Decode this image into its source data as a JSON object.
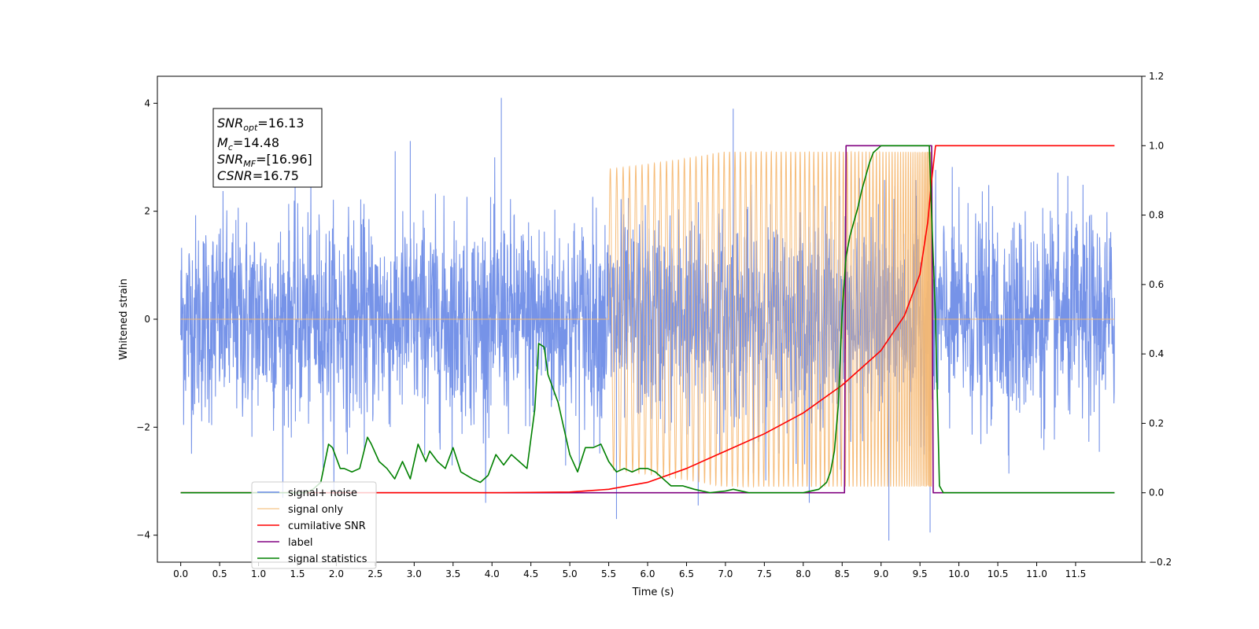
{
  "chart_data": {
    "type": "line",
    "xlabel": "Time (s)",
    "ylabel": "Whitened strain",
    "x_ticks": [
      "0.0",
      "0.5",
      "1.0",
      "1.5",
      "2.0",
      "2.5",
      "3.0",
      "3.5",
      "4.0",
      "4.5",
      "5.0",
      "5.5",
      "6.0",
      "6.5",
      "7.0",
      "7.5",
      "8.0",
      "8.5",
      "9.0",
      "9.5",
      "10.0",
      "10.5",
      "11.0",
      "11.5"
    ],
    "xlim": [
      -0.3,
      12.35
    ],
    "ylim": [
      -4.5,
      4.5
    ],
    "y_ticks": [
      "−4",
      "−2",
      "0",
      "2",
      "4"
    ],
    "ylim_right": [
      -0.2,
      1.2
    ],
    "y_ticks_right": [
      "−0.2",
      "0.0",
      "0.2",
      "0.4",
      "0.6",
      "0.8",
      "1.0",
      "1.2"
    ],
    "grid": false,
    "legend_position": "lower-left",
    "annotation": {
      "snr_opt": {
        "name": "SNR",
        "sub": "opt",
        "value": "=16.13"
      },
      "mc": {
        "name": "M",
        "sub": "c",
        "value": "=14.48"
      },
      "snr_mf": {
        "name": "SNR",
        "sub": "MF",
        "value": "=[16.96]"
      },
      "csnr": {
        "name": "CSNR",
        "value": "=16.75"
      }
    },
    "series": [
      {
        "name": "signal+ noise",
        "color": "#6a8ae6",
        "axis": "left",
        "note": "white noise, amplitude ~±2, spikes to ~4.1 and ~-4.1, t = 0–12"
      },
      {
        "name": "signal only",
        "color": "#f5b872",
        "axis": "left",
        "chirp": {
          "t_start": 5.5,
          "t_merge": 9.65,
          "peak_amplitude": 3.1
        }
      },
      {
        "name": "cumilative SNR",
        "color": "#ff0000",
        "axis": "right",
        "x": [
          0.0,
          4.0,
          5.0,
          5.5,
          6.0,
          6.5,
          7.0,
          7.5,
          8.0,
          8.5,
          9.0,
          9.3,
          9.5,
          9.6,
          9.65,
          9.7,
          12.0
        ],
        "y": [
          0.0,
          0.0,
          0.002,
          0.01,
          0.03,
          0.07,
          0.12,
          0.17,
          0.23,
          0.31,
          0.41,
          0.51,
          0.63,
          0.78,
          0.9,
          1.0,
          1.0
        ]
      },
      {
        "name": "label",
        "color": "#800080",
        "axis": "right",
        "x": [
          0.0,
          8.53,
          8.55,
          9.65,
          9.67,
          12.0
        ],
        "y": [
          0.0,
          0.0,
          1.0,
          1.0,
          0.0,
          0.0
        ]
      },
      {
        "name": "signal statistics",
        "color": "#008000",
        "axis": "right",
        "x": [
          0.0,
          1.6,
          1.7,
          1.8,
          1.9,
          1.95,
          2.05,
          2.1,
          2.2,
          2.3,
          2.4,
          2.45,
          2.55,
          2.65,
          2.75,
          2.85,
          2.95,
          3.05,
          3.15,
          3.2,
          3.3,
          3.4,
          3.5,
          3.6,
          3.75,
          3.85,
          3.95,
          4.05,
          4.15,
          4.25,
          4.35,
          4.45,
          4.55,
          4.6,
          4.67,
          4.72,
          4.85,
          5.0,
          5.1,
          5.2,
          5.3,
          5.4,
          5.5,
          5.6,
          5.7,
          5.8,
          5.9,
          6.0,
          6.1,
          6.2,
          6.3,
          6.45,
          6.6,
          6.8,
          7.0,
          7.1,
          7.3,
          8.0,
          8.2,
          8.3,
          8.35,
          8.4,
          8.45,
          8.5,
          8.55,
          8.6,
          8.65,
          8.7,
          8.75,
          8.8,
          8.85,
          8.9,
          8.95,
          9.0,
          9.2,
          9.62,
          9.65,
          9.7,
          9.75,
          9.8,
          12.0
        ],
        "y": [
          0.0,
          0.0,
          0.01,
          0.03,
          0.14,
          0.13,
          0.07,
          0.07,
          0.06,
          0.07,
          0.16,
          0.14,
          0.09,
          0.07,
          0.04,
          0.09,
          0.04,
          0.14,
          0.09,
          0.12,
          0.09,
          0.07,
          0.13,
          0.06,
          0.04,
          0.03,
          0.05,
          0.11,
          0.08,
          0.11,
          0.09,
          0.07,
          0.24,
          0.43,
          0.42,
          0.34,
          0.26,
          0.11,
          0.06,
          0.13,
          0.13,
          0.14,
          0.09,
          0.06,
          0.07,
          0.06,
          0.07,
          0.07,
          0.06,
          0.04,
          0.02,
          0.02,
          0.01,
          0.0,
          0.005,
          0.01,
          0.0,
          0.0,
          0.01,
          0.03,
          0.06,
          0.12,
          0.25,
          0.52,
          0.68,
          0.74,
          0.78,
          0.82,
          0.87,
          0.91,
          0.95,
          0.98,
          0.99,
          1.0,
          1.0,
          1.0,
          0.8,
          0.5,
          0.02,
          0.0,
          0.0
        ]
      }
    ]
  }
}
